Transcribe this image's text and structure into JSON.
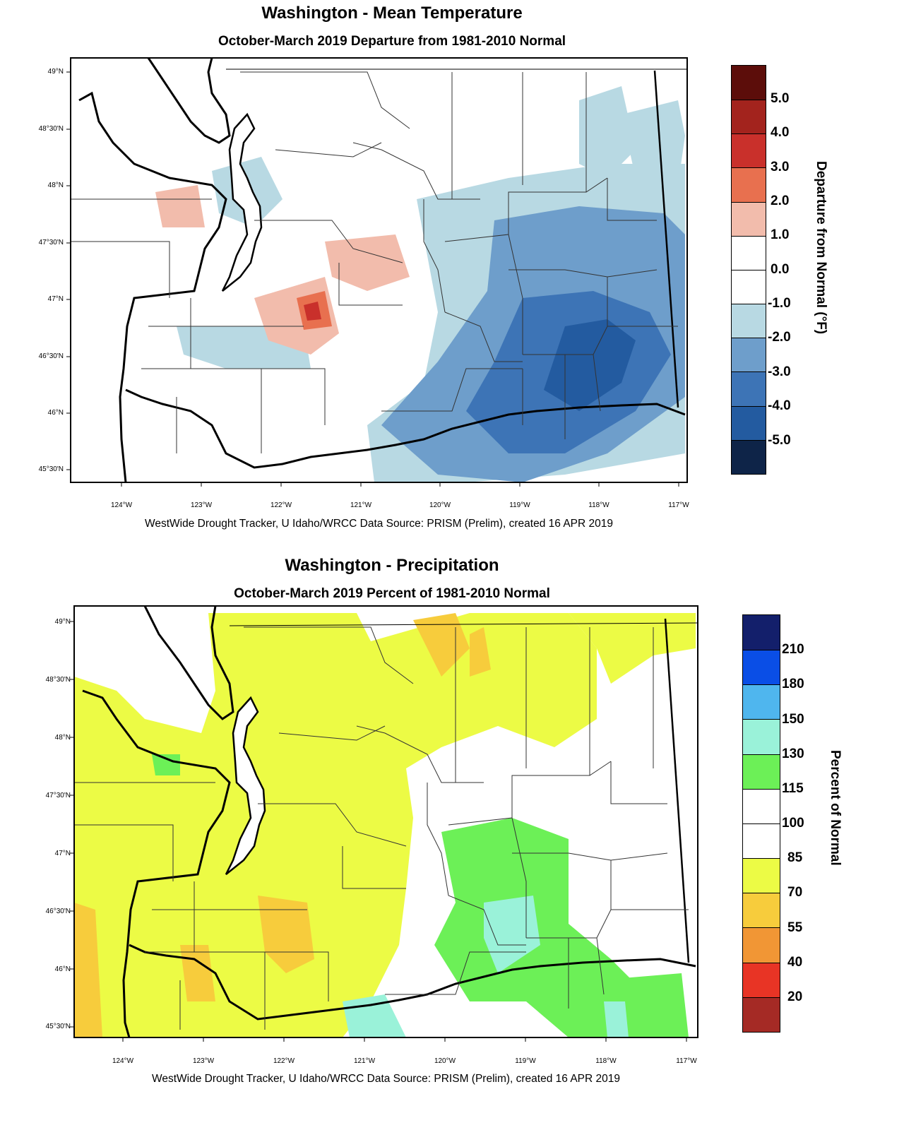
{
  "temperature": {
    "title": "Washington - Mean Temperature",
    "subtitle": "October-March 2019  Departure from 1981-2010 Normal",
    "credit": "WestWide Drought Tracker, U Idaho/WRCC Data Source: PRISM (Prelim), created 16 APR 2019",
    "lat_labels": [
      "49°N",
      "48°30'N",
      "48°N",
      "47°30'N",
      "47°N",
      "46°30'N",
      "46°N",
      "45°30'N"
    ],
    "lon_labels": [
      "124°W",
      "123°W",
      "122°W",
      "121°W",
      "120°W",
      "119°W",
      "118°W",
      "117°W"
    ],
    "colorbar": {
      "title": "Departure from Normal (°F)",
      "labels": [
        "5.0",
        "4.0",
        "3.0",
        "2.0",
        "1.0",
        "0.0",
        "-1.0",
        "-2.0",
        "-3.0",
        "-4.0",
        "-5.0"
      ],
      "colors": [
        "#5c0d0a",
        "#a3231d",
        "#c9302b",
        "#e8704f",
        "#f2bcac",
        "#ffffff",
        "#ffffff",
        "#b8d9e3",
        "#6e9ecb",
        "#3d74b6",
        "#235ba0",
        "#0e2448"
      ]
    }
  },
  "precipitation": {
    "title": "Washington - Precipitation",
    "subtitle": "October-March 2019  Percent of 1981-2010 Normal",
    "credit": "WestWide Drought Tracker, U Idaho/WRCC Data Source: PRISM (Prelim), created 16 APR 2019",
    "lat_labels": [
      "49°N",
      "48°30'N",
      "48°N",
      "47°30'N",
      "47°N",
      "46°30'N",
      "46°N",
      "45°30'N"
    ],
    "lon_labels": [
      "124°W",
      "123°W",
      "122°W",
      "121°W",
      "120°W",
      "119°W",
      "118°W",
      "117°W"
    ],
    "colorbar": {
      "title": "Percent of Normal",
      "labels": [
        "210",
        "180",
        "150",
        "130",
        "115",
        "100",
        "85",
        "70",
        "55",
        "40",
        "20"
      ],
      "colors": [
        "#131f6b",
        "#0a4ee6",
        "#4fb6ee",
        "#9af2d9",
        "#6cf057",
        "#ffffff",
        "#ffffff",
        "#ecfb45",
        "#f7cc3c",
        "#f19635",
        "#e83425",
        "#a52a25"
      ]
    }
  },
  "palette": {
    "land": "#ffffff",
    "water": "#ffffff",
    "temp_warm_light": "#f2bcac",
    "temp_warm": "#e8704f",
    "temp_hot": "#c9302b",
    "temp_cool_light": "#b8d9e3",
    "temp_cool": "#6e9ecb",
    "temp_cold": "#3d74b6",
    "temp_colder": "#235ba0",
    "precip_dry_yellow": "#ecfb45",
    "precip_orange_light": "#f7cc3c",
    "precip_orange": "#f19635",
    "precip_green": "#6cf057",
    "precip_aqua": "#9af2d9"
  }
}
